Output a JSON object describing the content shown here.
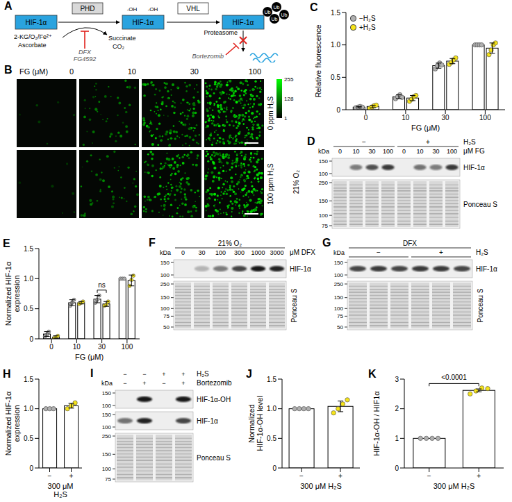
{
  "chart_data": [
    {
      "letter": "C",
      "type": "bar",
      "xlabel": "FG (μM)",
      "ylabel": "Relative fluorescence",
      "categories": [
        "0",
        "10",
        "30",
        "100"
      ],
      "ylim": [
        0,
        1.5
      ],
      "yticks": [
        0,
        0.5,
        {
          "value": 1,
          "label": "1.0"
        },
        1.5
      ],
      "legend": "top left",
      "series": [
        {
          "name": "−H₂S",
          "color": "#b0b0b0",
          "values": [
            0.04,
            0.2,
            0.68,
            1
          ],
          "errors": [
            0.01,
            0.03,
            0.04,
            0
          ],
          "points": [
            [
              0.03,
              0.04,
              0.05,
              0.04
            ],
            [
              0.17,
              0.2,
              0.23,
              0.19
            ],
            [
              0.63,
              0.68,
              0.72,
              0.69
            ],
            [
              1,
              1,
              1,
              1
            ]
          ]
        },
        {
          "name": "+H₂S",
          "color": "#f5e31a",
          "values": [
            0.05,
            0.18,
            0.75,
            0.95
          ],
          "errors": [
            0.02,
            0.04,
            0.04,
            0.08
          ],
          "points": [
            [
              0.02,
              0.04,
              0.06,
              0.07
            ],
            [
              0.13,
              0.16,
              0.2,
              0.22
            ],
            [
              0.7,
              0.73,
              0.77,
              0.8
            ],
            [
              0.85,
              0.92,
              1,
              1.03
            ]
          ]
        }
      ]
    },
    {
      "letter": "E",
      "type": "bar",
      "xlabel": "FG (μM)",
      "ylabel": "Normalized HIF-1α expression",
      "categories": [
        "0",
        "10",
        "30",
        "100"
      ],
      "ylim": [
        0,
        1.5
      ],
      "yticks": [
        0,
        0.5,
        {
          "value": 1,
          "label": "1.0"
        },
        1.5
      ],
      "annotations": [
        {
          "text": "ns",
          "category": "30"
        }
      ],
      "series": [
        {
          "name": "−H₂S",
          "color": "#b0b0b0",
          "values": [
            0.08,
            0.6,
            0.66,
            1
          ],
          "errors": [
            0.04,
            0.05,
            0.06,
            0
          ],
          "points": [
            [
              0.04,
              0.07,
              0.12
            ],
            [
              0.55,
              0.6,
              0.65
            ],
            [
              0.6,
              0.65,
              0.72
            ],
            [
              1,
              1,
              1
            ]
          ]
        },
        {
          "name": "+H₂S",
          "color": "#f5e31a",
          "values": [
            0.03,
            0.6,
            0.58,
            0.97
          ],
          "errors": [
            0.02,
            0.02,
            0.04,
            0.09
          ],
          "points": [
            [
              0.01,
              0.03,
              0.05
            ],
            [
              0.58,
              0.6,
              0.62
            ],
            [
              0.55,
              0.57,
              0.62
            ],
            [
              0.88,
              0.98,
              1.05
            ]
          ]
        }
      ]
    },
    {
      "letter": "H",
      "type": "bar",
      "xlabel": "300 μM H₂S",
      "ylabel": "Normalized HIF-1α expression",
      "categories": [
        "−",
        "+"
      ],
      "ylim": [
        0,
        1.5
      ],
      "yticks": [
        0,
        0.5,
        {
          "value": 1,
          "label": "1.0"
        },
        1.5
      ],
      "values": [
        1,
        1.05
      ],
      "errors": [
        0,
        0.04
      ],
      "points": [
        [
          1,
          1,
          1
        ],
        [
          1,
          1.05,
          1.1
        ]
      ],
      "colors": [
        "#b0b0b0",
        "#f5e31a"
      ]
    },
    {
      "letter": "J",
      "type": "bar",
      "xlabel": "300 μM H₂S",
      "ylabel": "Normalized HIF-1α-OH level",
      "categories": [
        "−",
        "+"
      ],
      "ylim": [
        0,
        1.5
      ],
      "yticks": [
        0,
        0.5,
        {
          "value": 1,
          "label": "1.0"
        },
        1.5
      ],
      "values": [
        1,
        1.04
      ],
      "errors": [
        0,
        0.09
      ],
      "points": [
        [
          1,
          1,
          1,
          1
        ],
        [
          0.93,
          1,
          1.08,
          1.15
        ]
      ],
      "colors": [
        "#b0b0b0",
        "#f5e31a"
      ]
    },
    {
      "letter": "K",
      "type": "bar",
      "xlabel": "300 μM H₂S",
      "ylabel": "HIF-1α-OH / HIF1α",
      "categories": [
        "−",
        "+"
      ],
      "ylim": [
        0,
        3
      ],
      "yticks": [
        0,
        1,
        2,
        3
      ],
      "values": [
        1,
        2.62
      ],
      "errors": [
        0,
        0.05
      ],
      "points": [
        [
          1,
          1,
          1,
          1
        ],
        [
          2.5,
          2.6,
          2.7,
          2.68
        ]
      ],
      "colors": [
        "#b0b0b0",
        "#f5e31a"
      ],
      "annotations": [
        {
          "text": "<0.0001",
          "from": "−",
          "to": "+"
        }
      ]
    }
  ],
  "diagram": {
    "letter": "A",
    "nodes": {
      "hif": "HIF-1α",
      "phd": "PHD",
      "vhl": "VHL",
      "oh": "-OH",
      "ub": "Ub"
    },
    "cofactors": [
      "2-KG/O₂/Fe²⁺",
      "Ascorbate"
    ],
    "products": [
      "Succinate",
      "CO₂"
    ],
    "phd_inhibitors": [
      "DFX",
      "FG4592"
    ],
    "degradation": "Proteasome",
    "proteasome_inhibitor": "Bortezomib"
  },
  "images": {
    "letter": "B",
    "column_title": "FG (μM)",
    "columns": [
      "0",
      "10",
      "30",
      "100"
    ],
    "rows": [
      "0 ppm H₂S",
      "100 ppm H₂S"
    ],
    "condition": "21% O₂",
    "colorbar": {
      "range": [
        1,
        255
      ],
      "ticks": [
        255,
        128,
        1
      ]
    }
  },
  "blots": [
    {
      "letter": "D",
      "kda_label": "kDa",
      "header_rows": [
        {
          "label": "H₂S",
          "groups": [
            {
              "text": "−",
              "span": 4
            },
            {
              "text": "+",
              "span": 4
            }
          ]
        },
        {
          "label": "μM FG",
          "lanes": [
            "0",
            "10",
            "30",
            "100",
            "0",
            "10",
            "30",
            "100"
          ]
        }
      ],
      "strips": [
        {
          "label": "HIF-1α",
          "markers": [
            150,
            100
          ],
          "band_intensity": [
            0,
            0.5,
            0.7,
            0.8,
            0,
            0.55,
            0.5,
            0.8
          ]
        },
        {
          "label": "Ponceau S",
          "markers": [
            250,
            150,
            100,
            75
          ]
        }
      ]
    },
    {
      "letter": "F",
      "kda_label": "kDa",
      "header_rows": [
        {
          "title": "21% O₂"
        },
        {
          "label": "μM DFX",
          "lanes": [
            "0",
            "30",
            "100",
            "300",
            "1000",
            "3000"
          ]
        }
      ],
      "strips": [
        {
          "label": "HIF-1α",
          "markers": [
            150,
            100
          ],
          "band_intensity": [
            0,
            0.25,
            0.5,
            0.75,
            0.95,
            0.9
          ]
        },
        {
          "label": "Ponceau S",
          "markers": [
            250,
            150,
            100,
            75,
            50
          ]
        }
      ]
    },
    {
      "letter": "G",
      "kda_label": "kDa",
      "header_rows": [
        {
          "title": "DFX"
        },
        {
          "label": "H₂S",
          "groups": [
            {
              "text": "−",
              "span": 3
            },
            {
              "text": "+",
              "span": 3
            }
          ]
        }
      ],
      "strips": [
        {
          "label": "HIF-1α",
          "markers": [
            150,
            100
          ],
          "band_intensity": [
            0.75,
            0.8,
            0.75,
            0.8,
            0.8,
            0.75
          ]
        },
        {
          "label": "Ponceau S",
          "markers": [
            250,
            150,
            100,
            75,
            50
          ]
        }
      ]
    },
    {
      "letter": "I",
      "kda_label": "kDa",
      "header_rows": [
        {
          "label": "H₂S",
          "lanes": [
            "−",
            "−",
            "+",
            "+"
          ]
        },
        {
          "label": "Bortezomib",
          "lanes": [
            "−",
            "+",
            "−",
            "+"
          ]
        }
      ],
      "strips": [
        {
          "label": "HIF-1α-OH",
          "markers": [
            150,
            100
          ],
          "band_intensity": [
            0,
            0.95,
            0,
            0.95
          ]
        },
        {
          "label": "HIF-1α",
          "markers": [
            150,
            100
          ],
          "band_intensity": [
            0.55,
            0.9,
            0,
            0.75
          ]
        },
        {
          "label": "Ponceau S",
          "markers": [
            250,
            150,
            100,
            75
          ]
        }
      ]
    }
  ]
}
